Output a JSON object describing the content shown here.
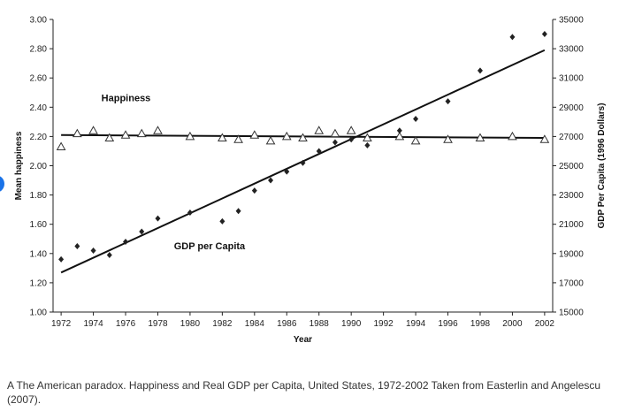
{
  "chart_data": {
    "type": "scatter",
    "xlabel": "Year",
    "ylabel": "Mean happiness",
    "y2label": "GDP Per Capita (1996 Dollars)",
    "xlim": [
      1971.5,
      2002.5
    ],
    "ylim": [
      1.0,
      3.0
    ],
    "y2lim": [
      15000,
      35000
    ],
    "xticks": [
      1972,
      1974,
      1976,
      1978,
      1980,
      1982,
      1984,
      1986,
      1988,
      1990,
      1992,
      1994,
      1996,
      1998,
      2000,
      2002
    ],
    "yticks": [
      "1.00",
      "1.20",
      "1.40",
      "1.60",
      "1.80",
      "2.00",
      "2.20",
      "2.40",
      "2.60",
      "2.80",
      "3.00"
    ],
    "y2ticks": [
      "15000",
      "17000",
      "19000",
      "21000",
      "23000",
      "25000",
      "27000",
      "29000",
      "31000",
      "33000",
      "35000"
    ],
    "grid": false,
    "annotations": {
      "happiness": "Happiness",
      "gdp": "GDP per Capita"
    },
    "series": [
      {
        "name": "Happiness",
        "axis": "left",
        "marker": "triangle-open",
        "x": [
          1972,
          1973,
          1974,
          1975,
          1976,
          1977,
          1978,
          1980,
          1982,
          1983,
          1984,
          1985,
          1986,
          1987,
          1988,
          1989,
          1990,
          1991,
          1993,
          1994,
          1996,
          1998,
          2000,
          2002
        ],
        "y": [
          2.13,
          2.22,
          2.24,
          2.19,
          2.21,
          2.22,
          2.24,
          2.2,
          2.19,
          2.18,
          2.21,
          2.17,
          2.2,
          2.19,
          2.24,
          2.22,
          2.24,
          2.19,
          2.2,
          2.17,
          2.18,
          2.19,
          2.2,
          2.18
        ],
        "trend": [
          [
            1972,
            2.21
          ],
          [
            2002,
            2.19
          ]
        ]
      },
      {
        "name": "GDP per Capita",
        "axis": "right",
        "marker": "diamond-filled",
        "x": [
          1972,
          1973,
          1974,
          1975,
          1976,
          1977,
          1978,
          1980,
          1982,
          1983,
          1984,
          1985,
          1986,
          1987,
          1988,
          1989,
          1990,
          1991,
          1993,
          1994,
          1996,
          1998,
          2000,
          2002
        ],
        "y": [
          18600,
          19500,
          19200,
          18900,
          19800,
          20500,
          21400,
          21800,
          21200,
          21900,
          23300,
          24000,
          24600,
          25200,
          26000,
          26600,
          26800,
          26400,
          27400,
          28200,
          29400,
          31500,
          33800,
          34000
        ],
        "trend": [
          [
            1972,
            17700
          ],
          [
            2002,
            32900
          ]
        ]
      }
    ]
  },
  "caption": "A The American paradox. Happiness and Real GDP per Capita, United States, 1972-2002 Taken from Easterlin and Angelescu (2007)."
}
